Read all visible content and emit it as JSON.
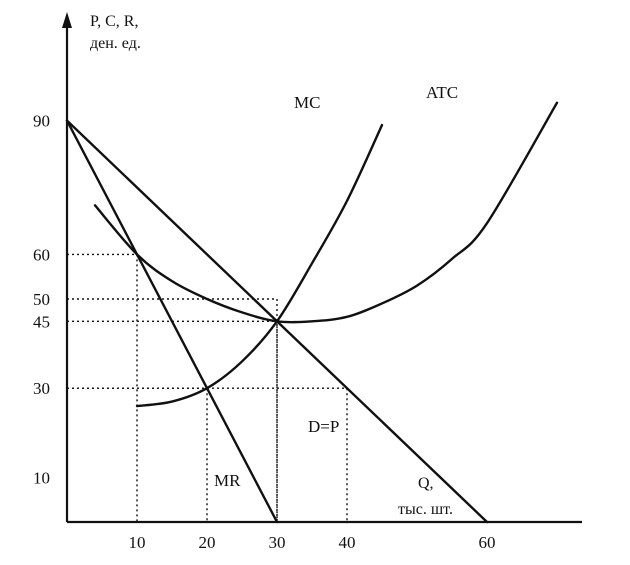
{
  "colors": {
    "ink": "#111111",
    "background": "#ffffff"
  },
  "chart_data": {
    "type": "line",
    "title": "",
    "ylabel": [
      "P, C, R,",
      "ден. ед."
    ],
    "xlabel": [
      "Q,",
      "тыс. шт."
    ],
    "xlim": [
      0,
      70
    ],
    "ylim": [
      0,
      100
    ],
    "x_ticks": [
      10,
      20,
      30,
      40,
      60
    ],
    "y_ticks": [
      10,
      30,
      45,
      50,
      60,
      90
    ],
    "series": [
      {
        "name": "D=P",
        "x": [
          0,
          60
        ],
        "y": [
          90,
          0
        ]
      },
      {
        "name": "MR",
        "x": [
          0,
          30
        ],
        "y": [
          90,
          0
        ]
      },
      {
        "name": "MC",
        "x": [
          10,
          15,
          20,
          25,
          30,
          35,
          40,
          45
        ],
        "y": [
          26,
          27,
          30,
          36,
          45,
          58,
          72,
          89
        ]
      },
      {
        "name": "ATC",
        "x": [
          4,
          10,
          15,
          20,
          25,
          30,
          35,
          40,
          45,
          50,
          55,
          60,
          70
        ],
        "y": [
          71,
          60,
          54,
          50,
          47,
          45,
          45,
          46,
          49,
          53,
          59,
          67,
          94
        ]
      }
    ],
    "guides": [
      {
        "x": 10,
        "y": 60
      },
      {
        "x": 20,
        "y": 30
      },
      {
        "x": 30,
        "y": 45
      },
      {
        "x": 40,
        "y": 30
      },
      {
        "x": 30,
        "y": 50
      }
    ]
  }
}
